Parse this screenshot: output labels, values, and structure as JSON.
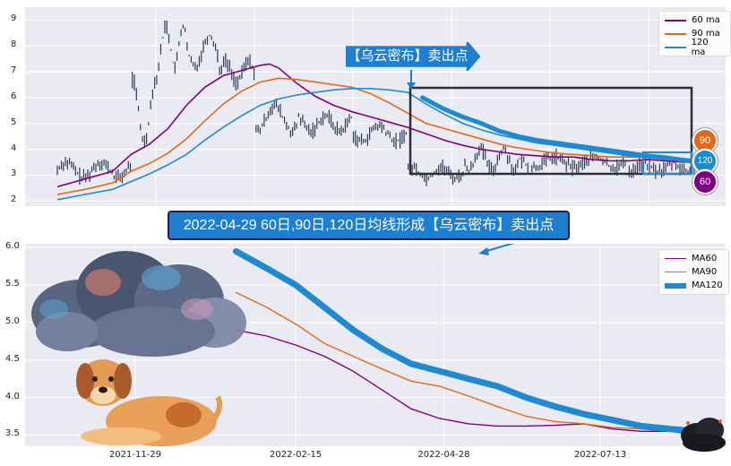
{
  "colors": {
    "ma60": "#800080",
    "ma90": "#e06a1b",
    "ma120": "#1f8ad0",
    "price": "#2e3b55",
    "box": "#2b2f3a",
    "arrow": "#1e7fd0"
  },
  "annotations": {
    "sell_arrow": "【乌云密布】卖出点",
    "banner": "2022-04-29 60日,90日,120日均线形成【乌云密布】卖出点",
    "badges": [
      "90",
      "120",
      "60"
    ]
  },
  "chart_data": [
    {
      "type": "line",
      "ylim": [
        1.8,
        9.5
      ],
      "yticks": [
        2,
        3,
        4,
        5,
        6,
        7,
        8,
        9
      ],
      "grid": true,
      "legend": "top-right",
      "series": [
        {
          "name": "60 ma",
          "color": "#800080",
          "points": [
            [
              0,
              2.55
            ],
            [
              30,
              2.85
            ],
            [
              60,
              3.15
            ],
            [
              80,
              3.8
            ],
            [
              100,
              4.2
            ],
            [
              120,
              4.8
            ],
            [
              140,
              5.7
            ],
            [
              160,
              6.4
            ],
            [
              180,
              6.85
            ],
            [
              200,
              7.05
            ],
            [
              220,
              7.25
            ],
            [
              230,
              7.3
            ],
            [
              240,
              7.15
            ],
            [
              260,
              6.55
            ],
            [
              280,
              6.05
            ],
            [
              300,
              5.7
            ],
            [
              320,
              5.45
            ],
            [
              340,
              5.25
            ],
            [
              360,
              5.05
            ],
            [
              380,
              4.85
            ],
            [
              400,
              4.6
            ],
            [
              420,
              4.35
            ],
            [
              440,
              4.15
            ],
            [
              460,
              4.0
            ],
            [
              480,
              3.9
            ],
            [
              500,
              3.8
            ],
            [
              520,
              3.75
            ],
            [
              540,
              3.7
            ],
            [
              560,
              3.7
            ],
            [
              580,
              3.6
            ],
            [
              600,
              3.55
            ],
            [
              620,
              3.55
            ],
            [
              640,
              3.6
            ],
            [
              660,
              3.55
            ],
            [
              680,
              3.5
            ],
            [
              690,
              3.5
            ]
          ]
        },
        {
          "name": "90 ma",
          "color": "#e06a1b",
          "points": [
            [
              0,
              2.25
            ],
            [
              30,
              2.45
            ],
            [
              60,
              2.7
            ],
            [
              80,
              3.15
            ],
            [
              100,
              3.45
            ],
            [
              120,
              3.85
            ],
            [
              140,
              4.4
            ],
            [
              160,
              5.1
            ],
            [
              180,
              5.75
            ],
            [
              200,
              6.25
            ],
            [
              220,
              6.6
            ],
            [
              240,
              6.75
            ],
            [
              260,
              6.7
            ],
            [
              280,
              6.6
            ],
            [
              300,
              6.5
            ],
            [
              320,
              6.4
            ],
            [
              340,
              6.15
            ],
            [
              360,
              5.8
            ],
            [
              380,
              5.4
            ],
            [
              400,
              5.0
            ],
            [
              420,
              4.8
            ],
            [
              440,
              4.6
            ],
            [
              460,
              4.4
            ],
            [
              480,
              4.2
            ],
            [
              500,
              4.05
            ],
            [
              520,
              3.95
            ],
            [
              540,
              3.85
            ],
            [
              560,
              3.8
            ],
            [
              580,
              3.75
            ],
            [
              600,
              3.7
            ],
            [
              620,
              3.7
            ],
            [
              640,
              3.68
            ],
            [
              660,
              3.62
            ],
            [
              680,
              3.58
            ],
            [
              690,
              3.56
            ]
          ]
        },
        {
          "name": "120 ma",
          "color": "#1f8ad0",
          "points": [
            [
              0,
              2.05
            ],
            [
              30,
              2.25
            ],
            [
              60,
              2.45
            ],
            [
              80,
              2.75
            ],
            [
              100,
              3.05
            ],
            [
              120,
              3.4
            ],
            [
              140,
              3.8
            ],
            [
              160,
              4.35
            ],
            [
              180,
              4.85
            ],
            [
              200,
              5.3
            ],
            [
              220,
              5.7
            ],
            [
              240,
              5.95
            ],
            [
              260,
              6.1
            ],
            [
              280,
              6.2
            ],
            [
              300,
              6.3
            ],
            [
              320,
              6.35
            ],
            [
              340,
              6.35
            ],
            [
              360,
              6.3
            ],
            [
              380,
              6.2
            ],
            [
              400,
              5.75
            ],
            [
              420,
              5.35
            ],
            [
              440,
              5.0
            ],
            [
              460,
              4.75
            ],
            [
              480,
              4.55
            ],
            [
              500,
              4.4
            ],
            [
              520,
              4.25
            ],
            [
              540,
              4.15
            ],
            [
              560,
              4.05
            ],
            [
              580,
              3.95
            ],
            [
              600,
              3.85
            ],
            [
              620,
              3.75
            ],
            [
              640,
              3.68
            ],
            [
              660,
              3.6
            ],
            [
              680,
              3.55
            ],
            [
              690,
              3.5
            ]
          ]
        }
      ]
    },
    {
      "type": "line",
      "x_ticks": [
        "2021-11-29",
        "2022-02-15",
        "2022-04-28",
        "2022-07-13"
      ],
      "ylim": [
        3.35,
        6.05
      ],
      "yticks": [
        3.5,
        4.0,
        4.5,
        5.0,
        5.5,
        6.0
      ],
      "grid": true,
      "legend": "top-right",
      "series": [
        {
          "name": "MA60",
          "color": "#800080",
          "points": [
            [
              "2022-01-17",
              4.9
            ],
            [
              "2022-02-01",
              4.82
            ],
            [
              "2022-02-15",
              4.7
            ],
            [
              "2022-03-01",
              4.55
            ],
            [
              "2022-03-15",
              4.35
            ],
            [
              "2022-03-29",
              4.1
            ],
            [
              "2022-04-12",
              3.85
            ],
            [
              "2022-04-26",
              3.72
            ],
            [
              "2022-05-10",
              3.65
            ],
            [
              "2022-05-24",
              3.62
            ],
            [
              "2022-06-07",
              3.62
            ],
            [
              "2022-06-21",
              3.63
            ],
            [
              "2022-07-05",
              3.65
            ],
            [
              "2022-07-19",
              3.58
            ],
            [
              "2022-08-02",
              3.55
            ],
            [
              "2022-08-16",
              3.55
            ],
            [
              "2022-08-30",
              3.5
            ]
          ]
        },
        {
          "name": "MA90",
          "color": "#e06a1b",
          "points": [
            [
              "2022-01-17",
              5.4
            ],
            [
              "2022-02-01",
              5.2
            ],
            [
              "2022-02-15",
              4.98
            ],
            [
              "2022-03-01",
              4.72
            ],
            [
              "2022-03-15",
              4.55
            ],
            [
              "2022-03-29",
              4.38
            ],
            [
              "2022-04-12",
              4.22
            ],
            [
              "2022-04-26",
              4.15
            ],
            [
              "2022-05-10",
              4.02
            ],
            [
              "2022-05-24",
              3.88
            ],
            [
              "2022-06-07",
              3.75
            ],
            [
              "2022-06-21",
              3.68
            ],
            [
              "2022-07-05",
              3.65
            ],
            [
              "2022-07-19",
              3.6
            ],
            [
              "2022-08-02",
              3.58
            ],
            [
              "2022-08-16",
              3.55
            ],
            [
              "2022-08-30",
              3.53
            ]
          ]
        },
        {
          "name": "MA120",
          "color": "#1f8ad0",
          "points": [
            [
              "2022-01-17",
              5.95
            ],
            [
              "2022-02-01",
              5.72
            ],
            [
              "2022-02-15",
              5.5
            ],
            [
              "2022-03-01",
              5.2
            ],
            [
              "2022-03-15",
              4.9
            ],
            [
              "2022-03-29",
              4.65
            ],
            [
              "2022-04-12",
              4.45
            ],
            [
              "2022-04-26",
              4.35
            ],
            [
              "2022-05-10",
              4.25
            ],
            [
              "2022-05-24",
              4.15
            ],
            [
              "2022-06-07",
              4.0
            ],
            [
              "2022-06-21",
              3.88
            ],
            [
              "2022-07-05",
              3.78
            ],
            [
              "2022-07-19",
              3.7
            ],
            [
              "2022-08-02",
              3.62
            ],
            [
              "2022-08-16",
              3.58
            ],
            [
              "2022-08-30",
              3.55
            ]
          ]
        }
      ]
    }
  ]
}
